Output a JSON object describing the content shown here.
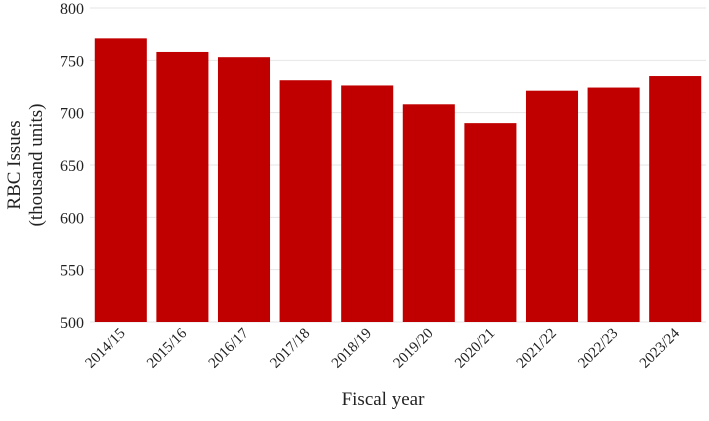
{
  "chart_data": {
    "type": "bar",
    "title": "",
    "xlabel": "Fiscal year",
    "ylabel": [
      "RBC Issues",
      "(thousand units)"
    ],
    "categories": [
      "2014/15",
      "2015/16",
      "2016/17",
      "2017/18",
      "2018/19",
      "2019/20",
      "2020/21",
      "2021/22",
      "2022/23",
      "2023/24"
    ],
    "values": [
      771,
      758,
      753,
      731,
      726,
      708,
      690,
      721,
      724,
      735
    ],
    "ylim": [
      500,
      800
    ],
    "yticks": [
      500,
      550,
      600,
      650,
      700,
      750,
      800
    ],
    "grid": "horizontal",
    "legend": "none",
    "bar_color": "#c00000",
    "grid_color": "#e6e6e6"
  }
}
